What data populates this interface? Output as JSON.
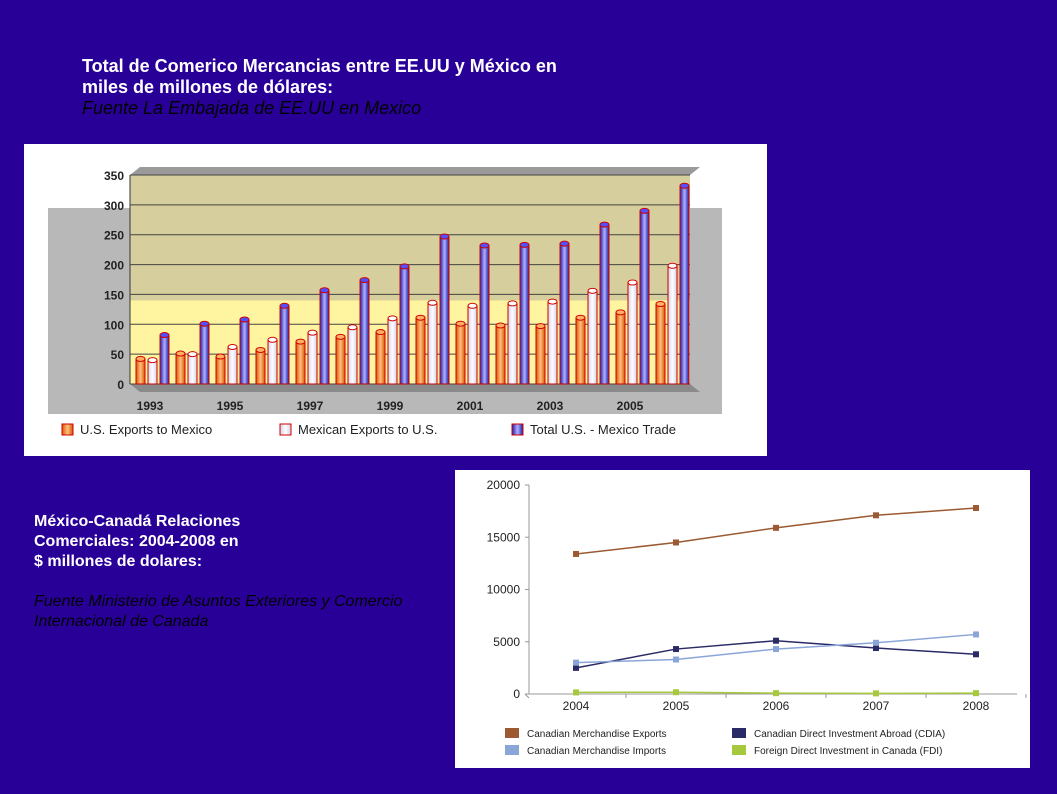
{
  "slide": {
    "title_line1": "Total de Comerico Mercancias entre EE.UU y México en",
    "title_line2": "miles de millones de dólares:",
    "title_source": "Fuente La Embajada de EE.UU en Mexico",
    "text2_line1": "México-Canadá Relaciones",
    "text2_line2": "Comerciales: 2004-2008 en",
    "text2_line3": "$ millones de dolares:",
    "text2_source": "Fuente Ministerio de Asuntos Exteriores y Comercio Internacional  de Canada",
    "background_color": "#290097"
  },
  "chart_data": [
    {
      "type": "bar",
      "style": "3d-clustered-cylinder",
      "categories": [
        "1993",
        "1994",
        "1995",
        "1996",
        "1997",
        "1998",
        "1999",
        "2000",
        "2001",
        "2002",
        "2003",
        "2004",
        "2005",
        "2006"
      ],
      "x_tick_labels": [
        "1993",
        "1995",
        "1997",
        "1999",
        "2001",
        "2003",
        "2005"
      ],
      "ylim": [
        0,
        350
      ],
      "yticks": [
        0,
        50,
        100,
        150,
        200,
        250,
        300,
        350
      ],
      "grid": true,
      "legend_position": "bottom",
      "series": [
        {
          "name": "U.S. Exports to Mexico",
          "color": "#ff8c2a",
          "values": [
            42,
            51,
            46,
            57,
            71,
            79,
            87,
            111,
            101,
            98,
            97,
            111,
            120,
            134
          ]
        },
        {
          "name": "Mexican Exports to U.S.",
          "color": "#ffffff",
          "values": [
            40,
            50,
            62,
            74,
            86,
            95,
            110,
            136,
            131,
            135,
            138,
            156,
            170,
            198
          ]
        },
        {
          "name": "Total U.S. - Mexico Trade",
          "color": "#3a3ad8",
          "values": [
            82,
            101,
            108,
            131,
            157,
            174,
            197,
            247,
            232,
            233,
            235,
            267,
            290,
            332
          ]
        }
      ]
    },
    {
      "type": "line",
      "x": [
        "2004",
        "2005",
        "2006",
        "2007",
        "2008"
      ],
      "ylim": [
        0,
        20000
      ],
      "yticks": [
        "0",
        "5000",
        "10000",
        "15000",
        "20000"
      ],
      "grid": false,
      "legend_position": "bottom",
      "series": [
        {
          "name": "Canadian Merchandise Exports",
          "color": "#9b5a32",
          "values": [
            13400,
            14500,
            15900,
            17100,
            17800
          ]
        },
        {
          "name": "Canadian Direct Investment Abroad (CDIA)",
          "color": "#2a2a66",
          "values": [
            2500,
            4300,
            5100,
            4400,
            3800
          ]
        },
        {
          "name": "Canadian Merchandise Imports",
          "color": "#8aa6d8",
          "values": [
            3000,
            3300,
            4300,
            4900,
            5700
          ]
        },
        {
          "name": "Foreign Direct Investment in Canada (FDI)",
          "color": "#a6c83c",
          "values": [
            150,
            170,
            80,
            60,
            80
          ]
        }
      ]
    }
  ]
}
